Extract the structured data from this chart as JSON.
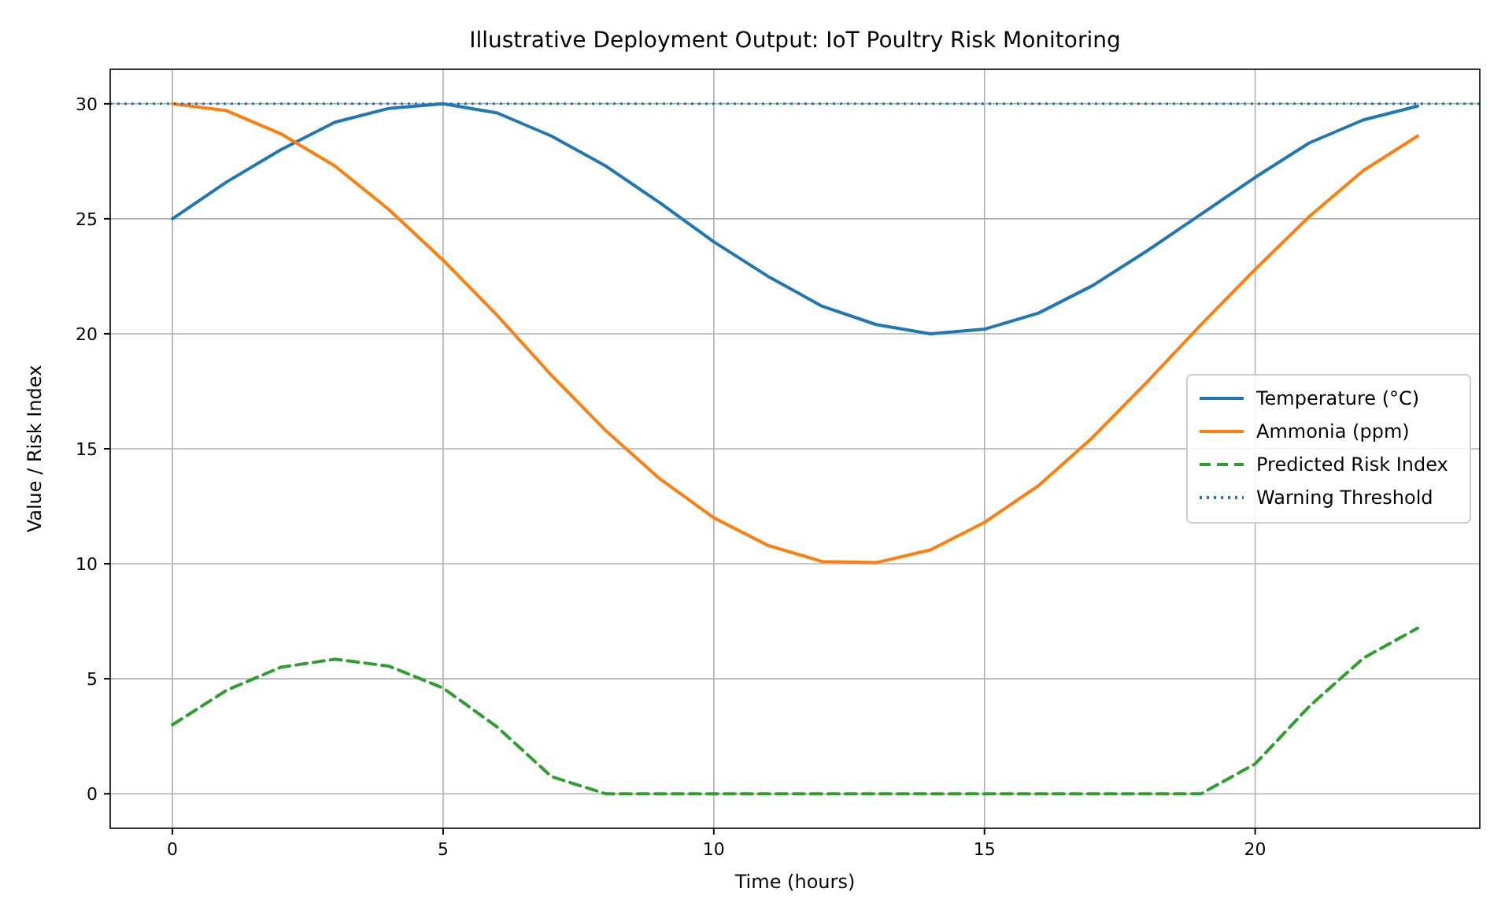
{
  "chart_data": {
    "type": "line",
    "title": "Illustrative Deployment Output: IoT Poultry Risk Monitoring",
    "xlabel": "Time (hours)",
    "ylabel": "Value / Risk Index",
    "x": [
      0,
      1,
      2,
      3,
      4,
      5,
      6,
      7,
      8,
      9,
      10,
      11,
      12,
      13,
      14,
      15,
      16,
      17,
      18,
      19,
      20,
      21,
      22,
      23
    ],
    "series": [
      {
        "name": "Temperature (°C)",
        "color": "#1f77b4",
        "line_style": "solid",
        "values": [
          25,
          26.6,
          28,
          29.2,
          29.8,
          30,
          29.6,
          28.6,
          27.3,
          25.7,
          24,
          22.5,
          21.2,
          20.4,
          20,
          20.2,
          20.9,
          22.1,
          23.6,
          25.2,
          26.8,
          28.3,
          29.3,
          29.9
        ]
      },
      {
        "name": "Ammonia (ppm)",
        "color": "#ff7f0e",
        "line_style": "solid",
        "values": [
          30,
          29.7,
          28.7,
          27.3,
          25.4,
          23.2,
          20.8,
          18.2,
          15.8,
          13.7,
          12,
          10.8,
          10.1,
          10.05,
          10.6,
          11.8,
          13.4,
          15.5,
          17.9,
          20.4,
          22.8,
          25.1,
          27.1,
          28.6
        ]
      },
      {
        "name": "Predicted Risk Index",
        "color": "#2ca02c",
        "line_style": "dashed",
        "values": [
          3,
          4.5,
          5.5,
          5.85,
          5.55,
          4.6,
          2.9,
          0.75,
          0,
          0,
          0,
          0,
          0,
          0,
          0,
          0,
          0,
          0,
          0,
          0,
          1.3,
          3.8,
          5.9,
          7.2
        ]
      }
    ],
    "ref_lines": [
      {
        "axis": "y",
        "value": 30,
        "label": "Warning Threshold",
        "color": "#1f77b4",
        "line_style": "dotted"
      }
    ],
    "xlim": [
      -1.15,
      24.15
    ],
    "ylim": [
      -1.5,
      31.5
    ],
    "xticks": [
      0,
      5,
      10,
      15,
      20
    ],
    "yticks": [
      0,
      5,
      10,
      15,
      20,
      25,
      30
    ],
    "grid": true,
    "legend": "center right"
  }
}
